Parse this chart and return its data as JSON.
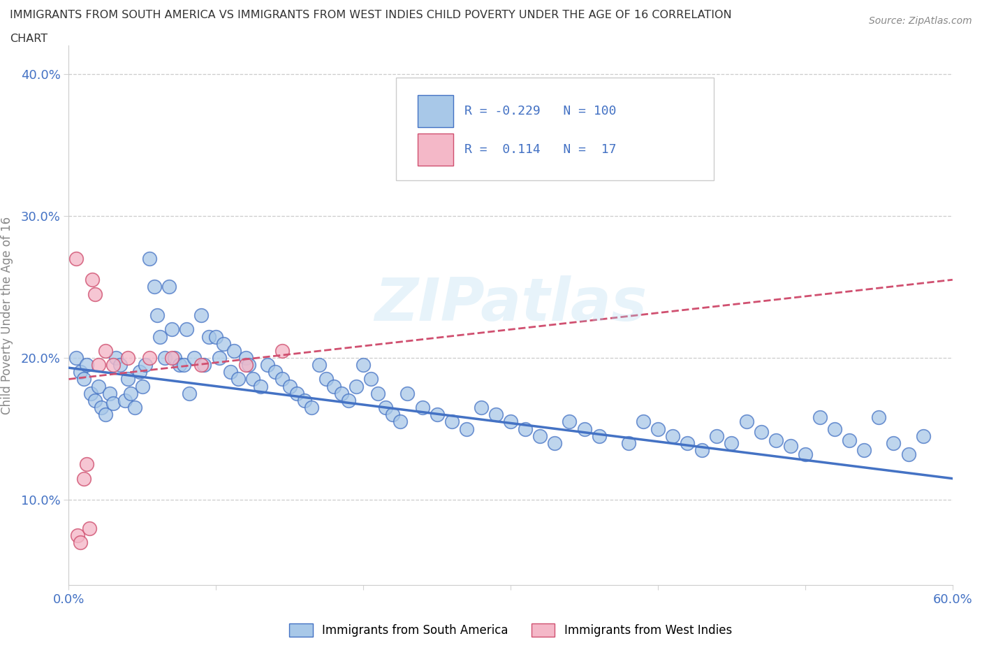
{
  "title_line1": "IMMIGRANTS FROM SOUTH AMERICA VS IMMIGRANTS FROM WEST INDIES CHILD POVERTY UNDER THE AGE OF 16 CORRELATION",
  "title_line2": "CHART",
  "source_text": "Source: ZipAtlas.com",
  "ylabel": "Child Poverty Under the Age of 16",
  "xlim": [
    0.0,
    0.6
  ],
  "ylim": [
    0.04,
    0.42
  ],
  "y_ticks": [
    0.1,
    0.2,
    0.3,
    0.4
  ],
  "y_tick_labels": [
    "10.0%",
    "20.0%",
    "30.0%",
    "40.0%"
  ],
  "x_tick_positions": [
    0.0,
    0.1,
    0.2,
    0.3,
    0.4,
    0.5,
    0.6
  ],
  "x_tick_labels": [
    "0.0%",
    "",
    "",
    "",
    "",
    "",
    "60.0%"
  ],
  "color_blue": "#a8c8e8",
  "color_pink": "#f4b8c8",
  "line_blue": "#4472c4",
  "line_pink": "#d05070",
  "watermark": "ZIPatlas",
  "blue_x": [
    0.005,
    0.008,
    0.01,
    0.012,
    0.015,
    0.018,
    0.02,
    0.022,
    0.025,
    0.028,
    0.03,
    0.032,
    0.035,
    0.038,
    0.04,
    0.042,
    0.045,
    0.048,
    0.05,
    0.052,
    0.055,
    0.058,
    0.06,
    0.062,
    0.065,
    0.068,
    0.07,
    0.072,
    0.075,
    0.078,
    0.08,
    0.082,
    0.085,
    0.09,
    0.092,
    0.095,
    0.1,
    0.102,
    0.105,
    0.11,
    0.112,
    0.115,
    0.12,
    0.122,
    0.125,
    0.13,
    0.135,
    0.14,
    0.145,
    0.15,
    0.155,
    0.16,
    0.165,
    0.17,
    0.175,
    0.18,
    0.185,
    0.19,
    0.195,
    0.2,
    0.205,
    0.21,
    0.215,
    0.22,
    0.225,
    0.23,
    0.24,
    0.25,
    0.26,
    0.27,
    0.28,
    0.29,
    0.3,
    0.31,
    0.32,
    0.33,
    0.34,
    0.35,
    0.36,
    0.38,
    0.39,
    0.4,
    0.41,
    0.42,
    0.43,
    0.44,
    0.45,
    0.46,
    0.47,
    0.48,
    0.49,
    0.5,
    0.51,
    0.52,
    0.53,
    0.54,
    0.55,
    0.56,
    0.57,
    0.58
  ],
  "blue_y": [
    0.2,
    0.19,
    0.185,
    0.195,
    0.175,
    0.17,
    0.18,
    0.165,
    0.16,
    0.175,
    0.168,
    0.2,
    0.195,
    0.17,
    0.185,
    0.175,
    0.165,
    0.19,
    0.18,
    0.195,
    0.27,
    0.25,
    0.23,
    0.215,
    0.2,
    0.25,
    0.22,
    0.2,
    0.195,
    0.195,
    0.22,
    0.175,
    0.2,
    0.23,
    0.195,
    0.215,
    0.215,
    0.2,
    0.21,
    0.19,
    0.205,
    0.185,
    0.2,
    0.195,
    0.185,
    0.18,
    0.195,
    0.19,
    0.185,
    0.18,
    0.175,
    0.17,
    0.165,
    0.195,
    0.185,
    0.18,
    0.175,
    0.17,
    0.18,
    0.195,
    0.185,
    0.175,
    0.165,
    0.16,
    0.155,
    0.175,
    0.165,
    0.16,
    0.155,
    0.15,
    0.165,
    0.16,
    0.155,
    0.15,
    0.145,
    0.14,
    0.155,
    0.15,
    0.145,
    0.14,
    0.155,
    0.15,
    0.145,
    0.14,
    0.135,
    0.145,
    0.14,
    0.155,
    0.148,
    0.142,
    0.138,
    0.132,
    0.158,
    0.15,
    0.142,
    0.135,
    0.158,
    0.14,
    0.132,
    0.145
  ],
  "pink_x": [
    0.005,
    0.006,
    0.008,
    0.01,
    0.012,
    0.014,
    0.016,
    0.018,
    0.02,
    0.025,
    0.03,
    0.04,
    0.055,
    0.07,
    0.09,
    0.12,
    0.145
  ],
  "pink_y": [
    0.27,
    0.075,
    0.07,
    0.115,
    0.125,
    0.08,
    0.255,
    0.245,
    0.195,
    0.205,
    0.195,
    0.2,
    0.2,
    0.2,
    0.195,
    0.195,
    0.205
  ]
}
